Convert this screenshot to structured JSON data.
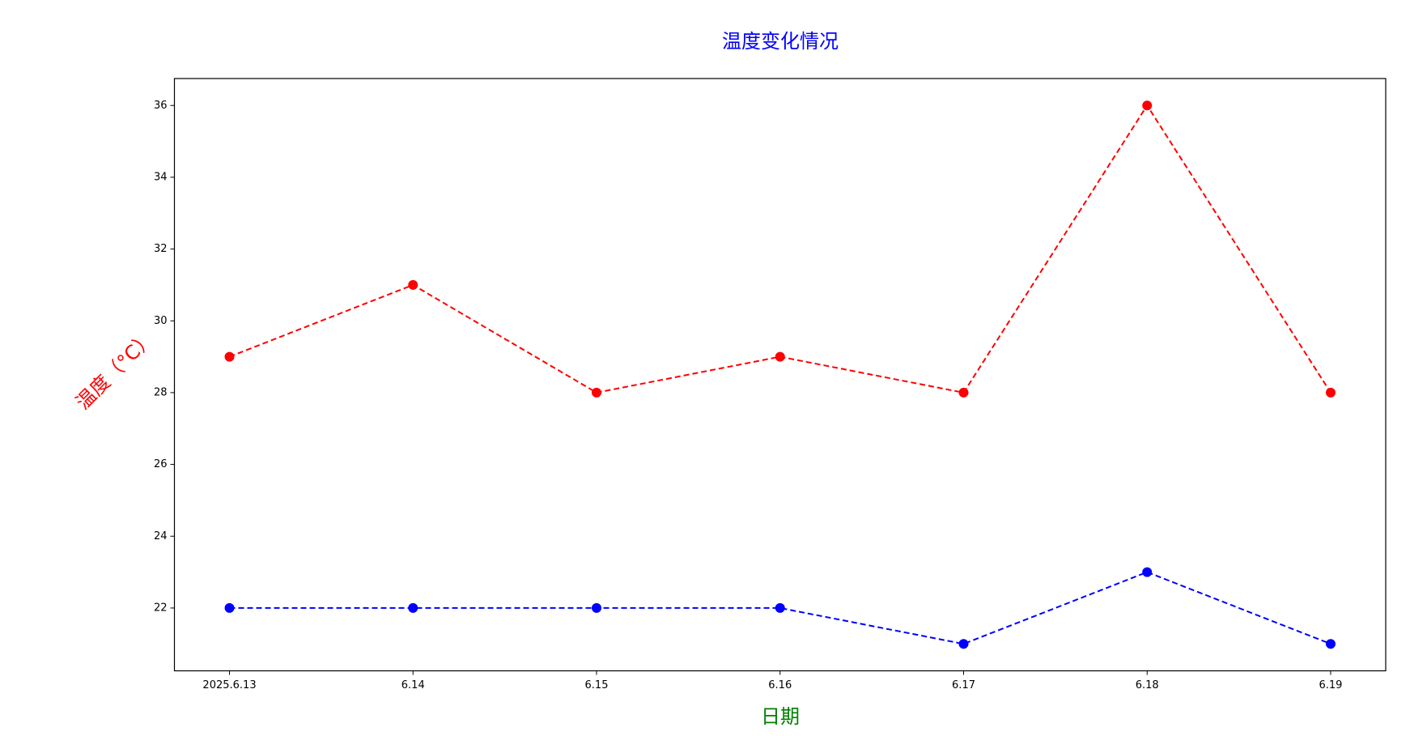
{
  "chart_data": {
    "type": "line",
    "title": "温度变化情况",
    "title_color": "blue",
    "x_label": "日期",
    "x_label_color": "green",
    "y_label": "温度（°C）",
    "y_label_color": "red",
    "categories": [
      "2025.6.13",
      "6.14",
      "6.15",
      "6.16",
      "6.17",
      "6.18",
      "6.19"
    ],
    "series": [
      {
        "color": "red",
        "values": [
          29,
          31,
          28,
          29,
          28,
          36,
          28
        ]
      },
      {
        "color": "blue",
        "values": [
          22,
          22,
          22,
          22,
          21,
          23,
          21
        ]
      }
    ],
    "line_style": "dashed",
    "marker": "circle",
    "ylim": [
      20.25,
      36.75
    ],
    "yticks": [
      22,
      24,
      26,
      28,
      30,
      32,
      34,
      36
    ],
    "grid": false
  }
}
